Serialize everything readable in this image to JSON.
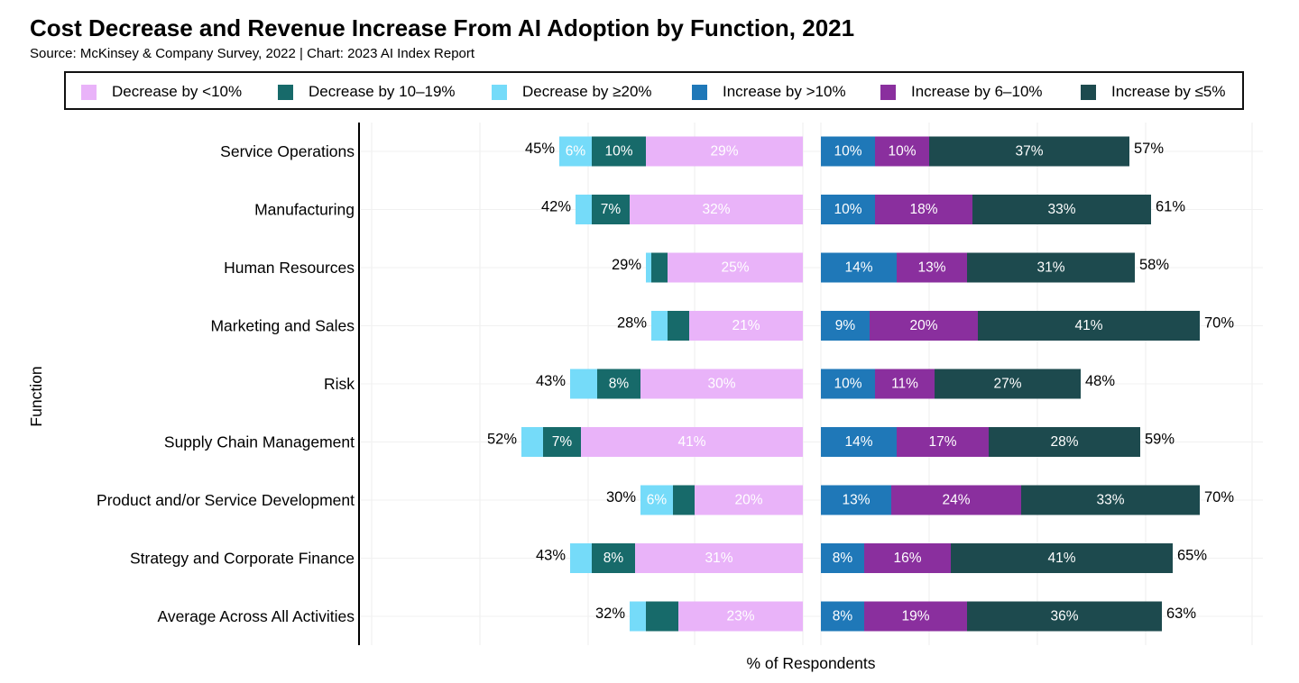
{
  "chart_data": {
    "type": "bar",
    "title": "Cost Decrease and Revenue Increase From AI Adoption by Function, 2021",
    "subtitle": "Source: McKinsey & Company Survey, 2022 | Chart: 2023 AI Index Report",
    "xlabel": "% of Respondents",
    "ylabel": "Function",
    "orientation": "horizontal-diverging",
    "grid": true,
    "legend_position": "top",
    "categories": [
      "Service Operations",
      "Manufacturing",
      "Human Resources",
      "Marketing and Sales",
      "Risk",
      "Supply Chain Management",
      "Product and/or Service Development",
      "Strategy and Corporate Finance",
      "Average Across All Activities"
    ],
    "series": [
      {
        "name": "Decrease by <10%",
        "side": "left",
        "color": "#e9b3f9",
        "label_color": "#ffffff",
        "values": [
          29,
          32,
          25,
          21,
          30,
          41,
          20,
          31,
          23
        ],
        "labels": [
          "29%",
          "32%",
          "25%",
          "21%",
          "30%",
          "41%",
          "20%",
          "31%",
          "23%"
        ]
      },
      {
        "name": "Decrease by 10–19%",
        "side": "left",
        "color": "#176a6a",
        "label_color": "#ffffff",
        "values": [
          10,
          7,
          3,
          4,
          8,
          7,
          4,
          8,
          6
        ],
        "labels": [
          "10%",
          "7%",
          "",
          "",
          "8%",
          "7%",
          "",
          "8%",
          ""
        ]
      },
      {
        "name": "Decrease by ≥20%",
        "side": "left",
        "color": "#75dbf9",
        "label_color": "#ffffff",
        "values": [
          6,
          3,
          1,
          3,
          5,
          4,
          6,
          4,
          3
        ],
        "labels": [
          "6%",
          "",
          "",
          "",
          "",
          "",
          "6%",
          "",
          ""
        ]
      },
      {
        "name": "Increase by >10%",
        "side": "right",
        "color": "#1f78b8",
        "label_color": "#ffffff",
        "values": [
          10,
          10,
          14,
          9,
          10,
          14,
          13,
          8,
          8
        ],
        "labels": [
          "10%",
          "10%",
          "14%",
          "9%",
          "10%",
          "14%",
          "13%",
          "8%",
          "8%"
        ]
      },
      {
        "name": "Increase by 6–10%",
        "side": "right",
        "color": "#8a2f9e",
        "label_color": "#ffffff",
        "values": [
          10,
          18,
          13,
          20,
          11,
          17,
          24,
          16,
          19
        ],
        "labels": [
          "10%",
          "18%",
          "13%",
          "20%",
          "11%",
          "17%",
          "24%",
          "16%",
          "19%"
        ]
      },
      {
        "name": "Increase by ≤5%",
        "side": "right",
        "color": "#1d4a4e",
        "label_color": "#ffffff",
        "values": [
          37,
          33,
          31,
          41,
          27,
          28,
          33,
          41,
          36
        ],
        "labels": [
          "37%",
          "33%",
          "31%",
          "41%",
          "27%",
          "28%",
          "33%",
          "41%",
          "36%"
        ]
      }
    ],
    "left_totals": [
      "45%",
      "42%",
      "29%",
      "28%",
      "43%",
      "52%",
      "30%",
      "43%",
      "32%"
    ],
    "right_totals": [
      "57%",
      "61%",
      "58%",
      "70%",
      "48%",
      "59%",
      "70%",
      "65%",
      "63%"
    ]
  }
}
